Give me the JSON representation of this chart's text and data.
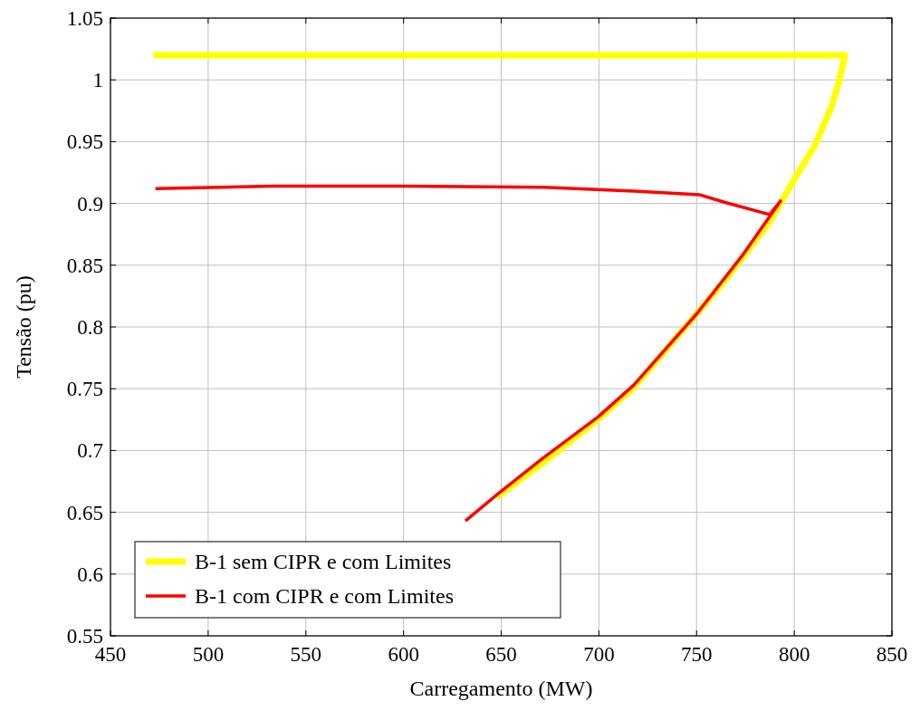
{
  "chart_data": {
    "type": "line",
    "xlabel": "Carregamento (MW)",
    "ylabel": "Tensão (pu)",
    "xlim": [
      450,
      850
    ],
    "xticks": [
      450,
      500,
      550,
      600,
      650,
      700,
      750,
      800,
      850
    ],
    "ylim": [
      0.55,
      1.05
    ],
    "yticks": [
      0.55,
      0.6,
      0.65,
      0.7,
      0.75,
      0.8,
      0.85,
      0.9,
      0.95,
      1,
      1.05
    ],
    "grid": true,
    "legend": "bottom left",
    "marker": "none",
    "line_style": "solid",
    "series": [
      {
        "name": "B-1 sem CIPR e com Limites",
        "color": "#ffff00",
        "x": [
          472,
          600,
          700,
          826,
          823,
          819,
          810.6,
          799.5,
          787.4,
          764.2,
          750.3,
          717.9,
          699.4,
          671.5,
          647.5
        ],
        "values": [
          1.02,
          1.02,
          1.02,
          1.02,
          0.999,
          0.978,
          0.947,
          0.918,
          0.885,
          0.837,
          0.811,
          0.751,
          0.725,
          0.69,
          0.662
        ]
      },
      {
        "name": "B-1 com CIPR e com Limites",
        "color": "#ff0000",
        "x": [
          473,
          532.5,
          599.7,
          671.5,
          717.9,
          751.7,
          764.2,
          787.4,
          793,
          773.5,
          750.3,
          717.9,
          699.4,
          671.5,
          648.4,
          631.7
        ],
        "values": [
          0.912,
          0.914,
          0.914,
          0.913,
          0.91,
          0.907,
          0.901,
          0.891,
          0.902,
          0.858,
          0.811,
          0.753,
          0.727,
          0.694,
          0.665,
          0.643
        ]
      }
    ]
  }
}
